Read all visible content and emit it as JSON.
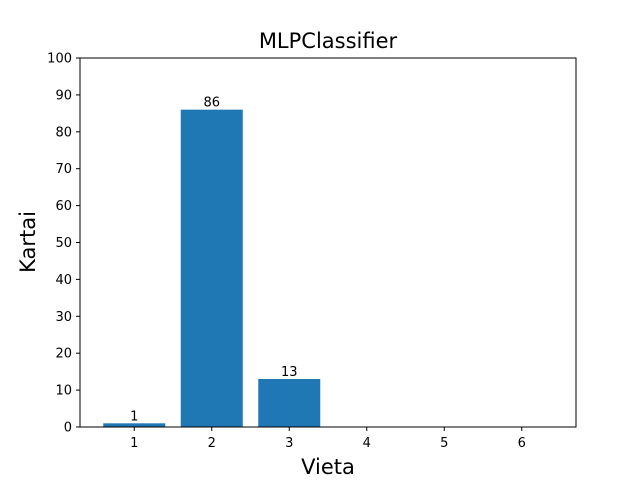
{
  "chart_data": {
    "type": "bar",
    "title": "MLPClassifier",
    "xlabel": "Vieta",
    "ylabel": "Kartai",
    "categories": [
      "1",
      "2",
      "3",
      "4",
      "5",
      "6"
    ],
    "values": [
      1,
      86,
      13,
      0,
      0,
      0
    ],
    "data_labels": [
      "1",
      "86",
      "13",
      "",
      "",
      ""
    ],
    "ylim": [
      0,
      100
    ],
    "yticks": [
      0,
      10,
      20,
      30,
      40,
      50,
      60,
      70,
      80,
      90,
      100
    ],
    "grid": false,
    "legend": "none",
    "bar_color": "#1f77b4"
  }
}
